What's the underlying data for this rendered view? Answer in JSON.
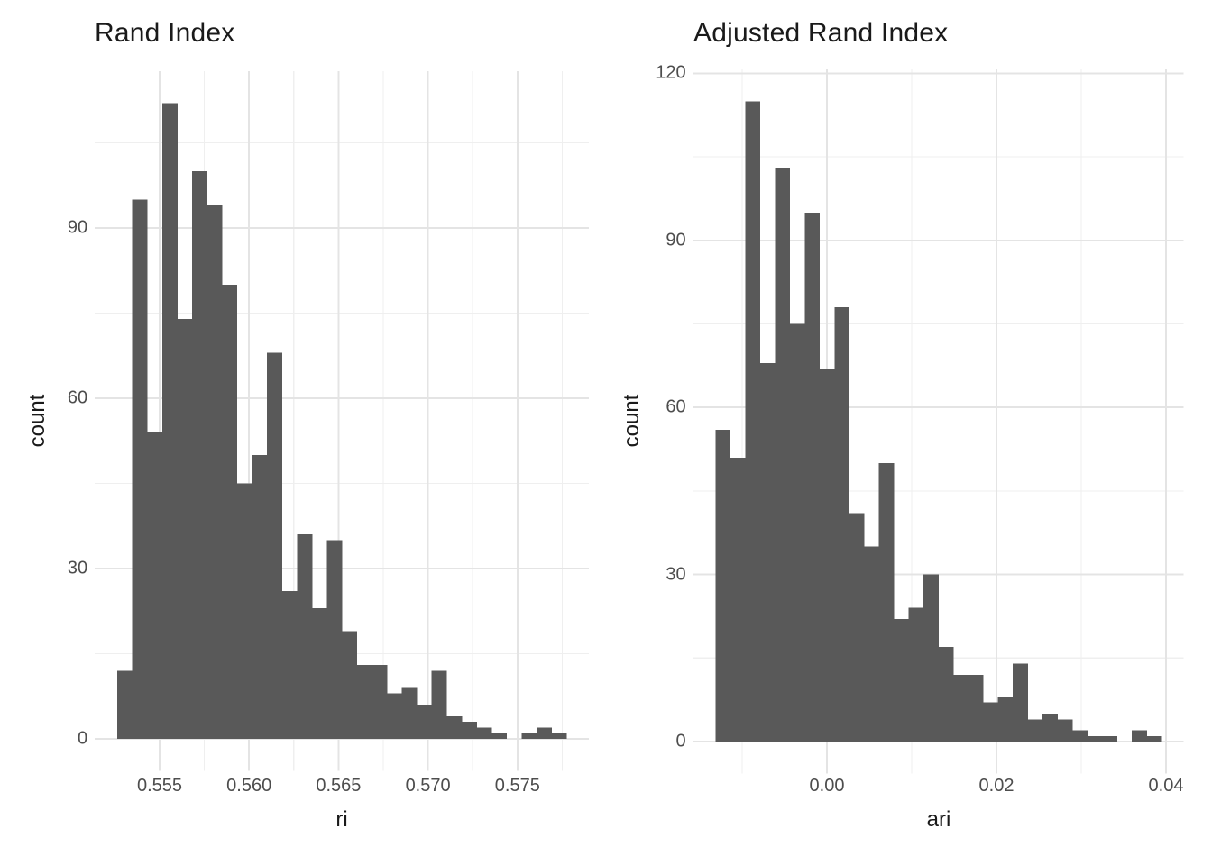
{
  "figure": {
    "background": "#FFFFFF",
    "bar_color": "#595959",
    "grid_major_color": "#E4E4E4",
    "grid_minor_color": "#EFEFEF",
    "tick_label_color": "#4D4D4D",
    "title_color": "#1A1A1A"
  },
  "chart_data": [
    {
      "type": "bar",
      "subtype": "histogram",
      "title": "Rand Index",
      "xlabel": "ri",
      "ylabel": "count",
      "grid": true,
      "legend": false,
      "bin_start": 0.55263,
      "bin_width": 0.000837,
      "counts": [
        12,
        95,
        54,
        112,
        74,
        100,
        94,
        80,
        45,
        50,
        68,
        26,
        36,
        23,
        35,
        19,
        13,
        13,
        8,
        9,
        6,
        12,
        4,
        3,
        2,
        1,
        0,
        1,
        2,
        1
      ],
      "x_ticks": [
        0.555,
        0.56,
        0.565,
        0.57,
        0.575
      ],
      "x_tick_labels": [
        "0.555",
        "0.560",
        "0.565",
        "0.570",
        "0.575"
      ],
      "x_minor_ticks": [
        0.5525,
        0.5575,
        0.5625,
        0.5675,
        0.5725,
        0.5775
      ],
      "y_ticks": [
        0,
        30,
        60,
        90
      ],
      "y_tick_labels": [
        "0",
        "30",
        "60",
        "90"
      ],
      "y_minor_ticks": [
        15,
        45,
        75,
        105
      ],
      "xlim": [
        0.551375,
        0.578985
      ],
      "ylim": [
        -5.6,
        117.6
      ]
    },
    {
      "type": "bar",
      "subtype": "histogram",
      "title": "Adjusted Rand Index",
      "xlabel": "ari",
      "ylabel": "count",
      "grid": true,
      "legend": false,
      "bin_start": -0.013157,
      "bin_width": 0.0017544,
      "counts": [
        56,
        51,
        115,
        68,
        103,
        75,
        95,
        67,
        78,
        41,
        35,
        50,
        22,
        24,
        30,
        17,
        12,
        12,
        7,
        8,
        14,
        4,
        5,
        4,
        2,
        1,
        1,
        0,
        2,
        1
      ],
      "x_ticks": [
        0.0,
        0.02,
        0.04
      ],
      "x_tick_labels": [
        "0.00",
        "0.02",
        "0.04"
      ],
      "x_minor_ticks": [
        -0.01,
        0.01,
        0.03
      ],
      "y_ticks": [
        0,
        30,
        60,
        90,
        120
      ],
      "y_tick_labels": [
        "0",
        "30",
        "60",
        "90",
        "120"
      ],
      "y_minor_ticks": [
        15,
        45,
        75,
        105
      ],
      "xlim": [
        -0.015788,
        0.042099
      ],
      "ylim": [
        -5.75,
        120.75
      ]
    }
  ]
}
